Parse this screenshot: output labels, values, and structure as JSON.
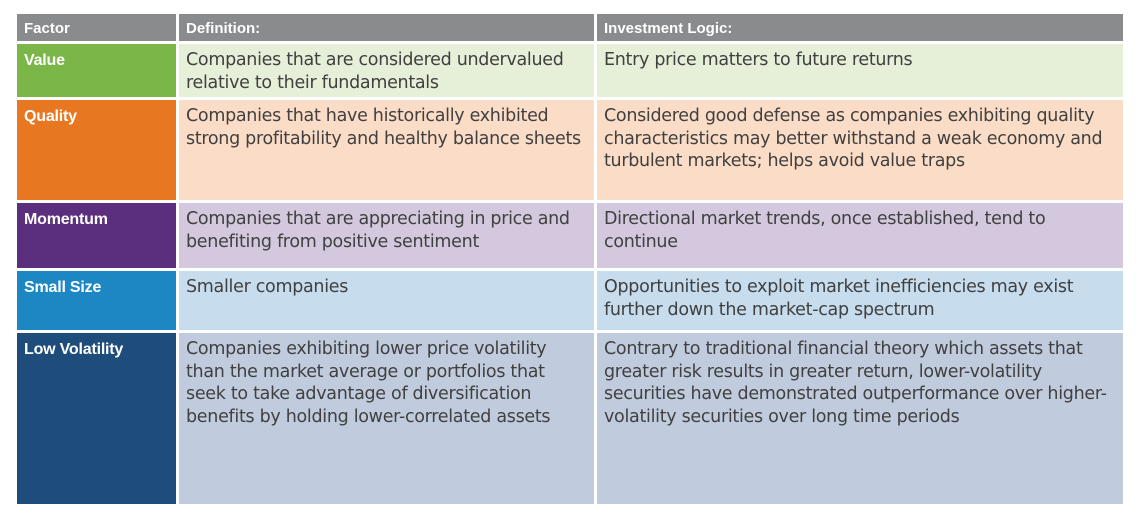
{
  "table": {
    "headers": {
      "factor": "Factor",
      "definition": "Definition:",
      "logic": "Investment Logic:"
    },
    "rows": [
      {
        "factor": "Value",
        "definition": "Companies that are considered undervalued relative to their fundamentals",
        "logic": "Entry price matters to future returns",
        "accent": "#7ab648",
        "tint": "#e6efd8"
      },
      {
        "factor": "Quality",
        "definition": "Companies that have historically exhibited strong profitability and healthy balance sheets",
        "logic": "Considered good defense as companies exhibiting quality characteristics may better withstand a weak economy and turbulent markets; helps avoid value traps",
        "accent": "#e87722",
        "tint": "#fbdcc6"
      },
      {
        "factor": "Momentum",
        "definition": "Companies that are appreciating in price and benefiting from positive sentiment",
        "logic": "Directional market trends, once established, tend to continue",
        "accent": "#5c2e7e",
        "tint": "#d3c8dd"
      },
      {
        "factor": "Small Size",
        "definition": "Smaller companies",
        "logic": "Opportunities to exploit market inefficiencies may exist further down the market-cap spectrum",
        "accent": "#1d87c4",
        "tint": "#c7dced"
      },
      {
        "factor": "Low Volatility",
        "definition": "Companies exhibiting lower price volatility than the market average or portfolios that seek to take advantage of diversification benefits by holding lower-correlated assets",
        "logic": "Contrary to traditional financial theory which assets that greater risk results in greater return, lower-volatility securities have demonstrated outperformance over higher-volatility securities over long time periods",
        "accent": "#1e4d7b",
        "tint": "#c0ccdd"
      }
    ]
  }
}
